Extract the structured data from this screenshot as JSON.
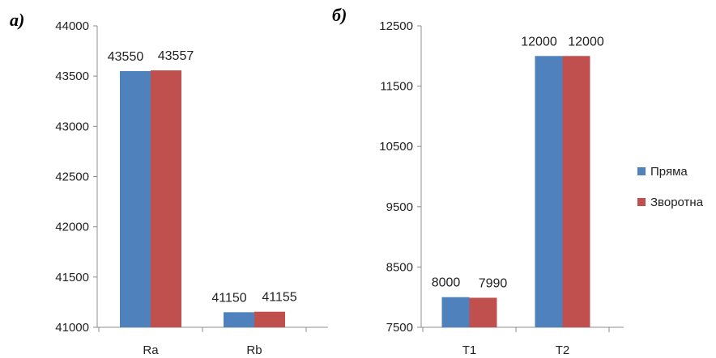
{
  "colors": {
    "series_a": "#4F81BD",
    "series_b": "#C0504D",
    "axis": "#8c8c8c"
  },
  "chart_data": [
    {
      "type": "bar",
      "panel_label": "а)",
      "categories": [
        "Ra",
        "Rb"
      ],
      "series": [
        {
          "name": "Пряма",
          "values": [
            43550,
            41150
          ]
        },
        {
          "name": "Зворотна",
          "values": [
            43557,
            41155
          ]
        }
      ],
      "ylim": [
        41000,
        44000
      ],
      "yticks": [
        41000,
        41500,
        42000,
        42500,
        43000,
        43500,
        44000
      ],
      "grid": false,
      "legend": "none"
    },
    {
      "type": "bar",
      "panel_label": "б)",
      "categories": [
        "T1",
        "T2"
      ],
      "series": [
        {
          "name": "Пряма",
          "values": [
            8000,
            12000
          ]
        },
        {
          "name": "Зворотна",
          "values": [
            7990,
            12000
          ]
        }
      ],
      "ylim": [
        7500,
        12500
      ],
      "yticks": [
        7500,
        8500,
        9500,
        10500,
        11500,
        12500
      ],
      "grid": false,
      "legend": "right"
    }
  ],
  "legend": {
    "items": [
      "Пряма",
      "Зворотна"
    ]
  }
}
